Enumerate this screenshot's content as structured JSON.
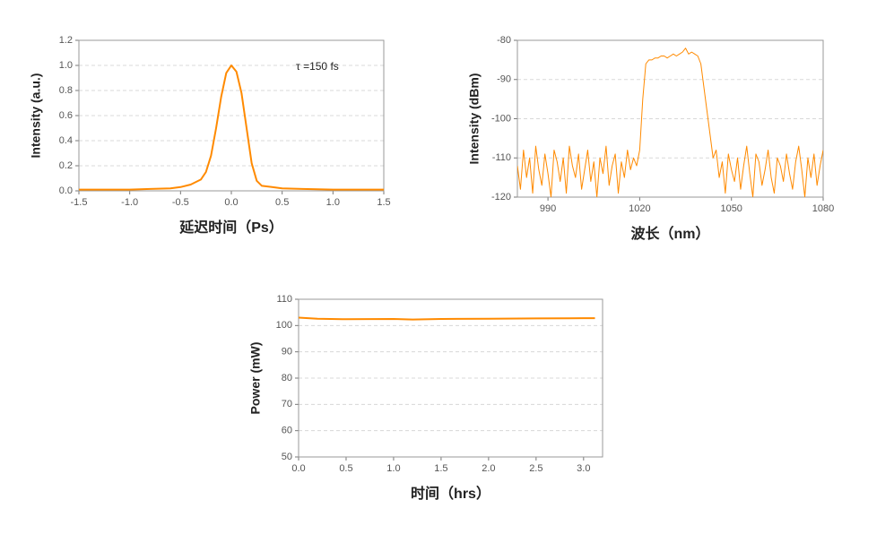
{
  "chart_data": [
    {
      "type": "line",
      "x_label": "延迟时间（Ps）",
      "y_label": "Intensity (a.u.)",
      "annotation": "τ =150 fs",
      "xlim": [
        -1.5,
        1.5
      ],
      "ylim": [
        0,
        1.2
      ],
      "grid": true,
      "xticks": [
        -1.5,
        {
          "value": -1,
          "label": "-1.0"
        },
        -0.5,
        {
          "value": 0,
          "label": "0.0"
        },
        0.5,
        {
          "value": 1,
          "label": "1.0"
        },
        1.5
      ],
      "yticks": [
        {
          "value": 0,
          "label": "0.0"
        },
        0.2,
        0.4,
        0.6,
        0.8,
        {
          "value": 1,
          "label": "1.0"
        },
        1.2
      ],
      "x": [
        -1.5,
        -1.0,
        -0.8,
        -0.6,
        -0.5,
        -0.4,
        -0.3,
        -0.25,
        -0.2,
        -0.15,
        -0.1,
        -0.05,
        0,
        0.05,
        0.1,
        0.15,
        0.2,
        0.25,
        0.3,
        0.4,
        0.5,
        0.7,
        1.0,
        1.5
      ],
      "series": [
        {
          "color": "#ff8a00",
          "values": [
            0.01,
            0.01,
            0.015,
            0.02,
            0.03,
            0.05,
            0.09,
            0.15,
            0.28,
            0.5,
            0.75,
            0.94,
            1.0,
            0.95,
            0.78,
            0.5,
            0.22,
            0.08,
            0.04,
            0.03,
            0.02,
            0.015,
            0.01,
            0.01
          ]
        }
      ]
    },
    {
      "type": "line",
      "x_label": "波长（nm）",
      "y_label": "Intensity (dBm)",
      "xlim": [
        980,
        1080
      ],
      "ylim": [
        -120,
        -80
      ],
      "grid": true,
      "xticks": [
        990,
        1020,
        1050,
        1080
      ],
      "yticks": [
        -120,
        -110,
        -100,
        -90,
        -80
      ],
      "x": [
        980,
        981,
        982,
        983,
        984,
        985,
        986,
        987,
        988,
        989,
        990,
        991,
        992,
        993,
        994,
        995,
        996,
        997,
        998,
        999,
        1000,
        1001,
        1002,
        1003,
        1004,
        1005,
        1006,
        1007,
        1008,
        1009,
        1010,
        1011,
        1012,
        1013,
        1014,
        1015,
        1016,
        1017,
        1018,
        1019,
        1020,
        1021,
        1022,
        1023,
        1024,
        1025,
        1026,
        1027,
        1028,
        1029,
        1030,
        1031,
        1032,
        1033,
        1034,
        1035,
        1036,
        1037,
        1038,
        1039,
        1040,
        1041,
        1042,
        1043,
        1044,
        1045,
        1046,
        1047,
        1048,
        1049,
        1050,
        1051,
        1052,
        1053,
        1054,
        1055,
        1056,
        1057,
        1058,
        1059,
        1060,
        1061,
        1062,
        1063,
        1064,
        1065,
        1066,
        1067,
        1068,
        1069,
        1070,
        1071,
        1072,
        1073,
        1074,
        1075,
        1076,
        1077,
        1078,
        1079,
        1080
      ],
      "series": [
        {
          "color": "#ff8a00",
          "values": [
            -112,
            -118,
            -108,
            -115,
            -110,
            -119,
            -107,
            -113,
            -117,
            -109,
            -114,
            -120,
            -108,
            -111,
            -116,
            -110,
            -119,
            -107,
            -112,
            -115,
            -109,
            -118,
            -113,
            -108,
            -116,
            -111,
            -120,
            -110,
            -114,
            -107,
            -117,
            -112,
            -109,
            -119,
            -111,
            -115,
            -108,
            -113,
            -110,
            -112,
            -108,
            -95,
            -86,
            -85,
            -85,
            -84.5,
            -84.5,
            -84,
            -84,
            -84.5,
            -84,
            -83.5,
            -84,
            -83.5,
            -83,
            -82,
            -83.5,
            -83,
            -83.5,
            -84,
            -86,
            -92,
            -98,
            -104,
            -110,
            -108,
            -115,
            -111,
            -119,
            -109,
            -113,
            -116,
            -110,
            -118,
            -112,
            -107,
            -114,
            -120,
            -109,
            -111,
            -117,
            -113,
            -108,
            -115,
            -119,
            -110,
            -112,
            -116,
            -109,
            -114,
            -118,
            -111,
            -107,
            -113,
            -120,
            -110,
            -115,
            -109,
            -117,
            -112,
            -108
          ]
        }
      ]
    },
    {
      "type": "line",
      "x_label": "时间（hrs）",
      "y_label": "Power (mW)",
      "xlim": [
        0,
        3.2
      ],
      "ylim": [
        50,
        110
      ],
      "grid": true,
      "xticks": [
        {
          "value": 0,
          "label": "0.0"
        },
        0.5,
        {
          "value": 1,
          "label": "1.0"
        },
        1.5,
        {
          "value": 2,
          "label": "2.0"
        },
        2.5,
        {
          "value": 3,
          "label": "3.0"
        }
      ],
      "yticks": [
        50,
        60,
        70,
        80,
        90,
        100,
        110
      ],
      "x": [
        0,
        0.2,
        0.5,
        1.0,
        1.2,
        1.5,
        2.0,
        2.5,
        3.0,
        3.12
      ],
      "series": [
        {
          "color": "#ff8a00",
          "values": [
            103,
            102.6,
            102.4,
            102.5,
            102.3,
            102.5,
            102.6,
            102.7,
            102.8,
            102.8
          ]
        }
      ]
    }
  ]
}
